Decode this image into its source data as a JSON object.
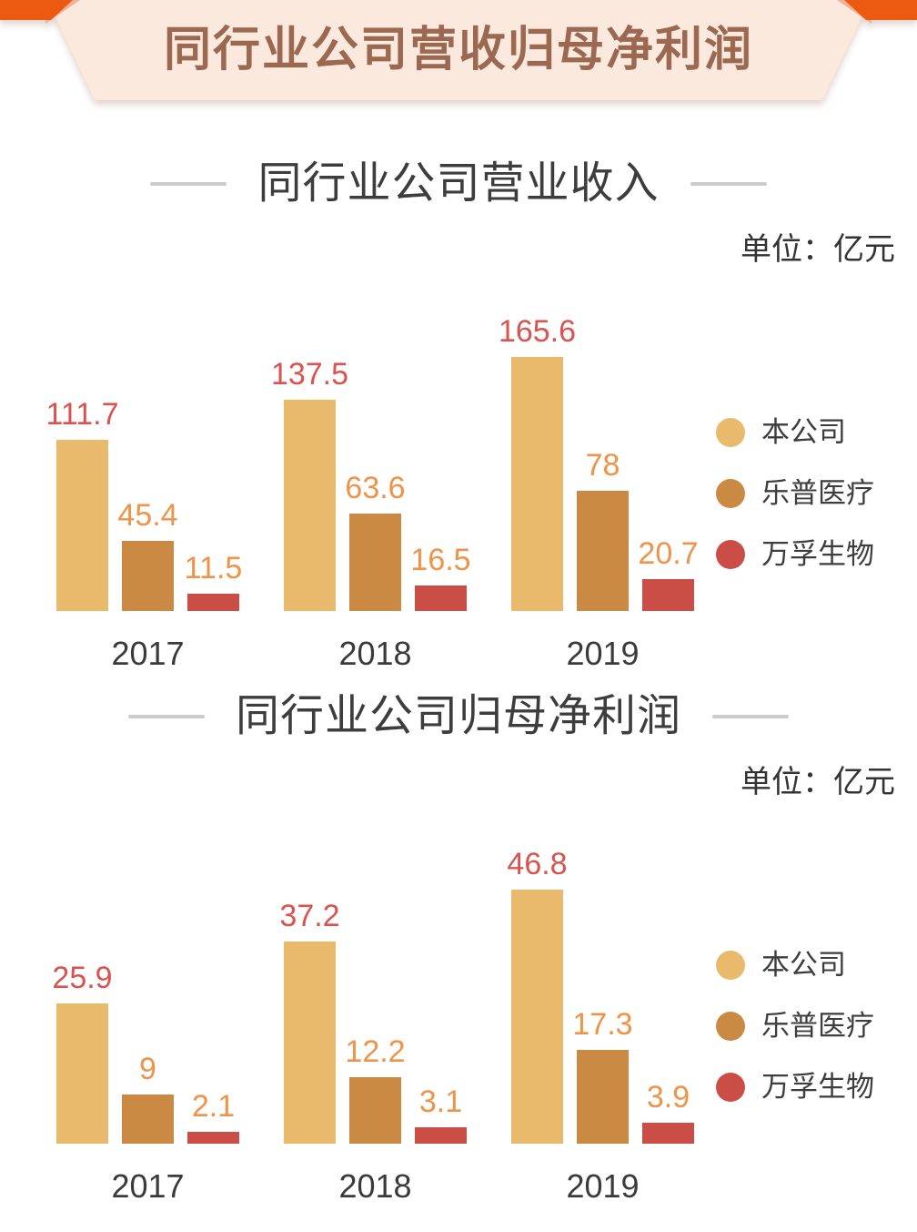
{
  "banner": {
    "title": "同行业公司营收归母净利润",
    "colors": {
      "background": "#fce9de",
      "text": "#9b6852",
      "ribbon": "#eb5a10",
      "fold": "#e9b29a"
    }
  },
  "chart_data": [
    {
      "type": "bar",
      "title": "同行业公司营业收入",
      "unit_label": "单位：亿元",
      "categories": [
        "2017",
        "2018",
        "2019"
      ],
      "series": [
        {
          "name": "本公司",
          "color": "#e9ba6c",
          "label_color": "#d9534f",
          "values": [
            111.7,
            137.5,
            165.6
          ]
        },
        {
          "name": "乐普医疗",
          "color": "#cb8a44",
          "label_color": "#ee9348",
          "values": [
            45.4,
            63.6,
            78
          ]
        },
        {
          "name": "万孚生物",
          "color": "#cb4e46",
          "label_color": "#ee9348",
          "values": [
            11.5,
            16.5,
            20.7
          ]
        }
      ],
      "xlabel": "",
      "ylabel": "亿元",
      "ylim": [
        0,
        166
      ],
      "grid": false,
      "legend_position": "right"
    },
    {
      "type": "bar",
      "title": "同行业公司归母净利润",
      "unit_label": "单位：亿元",
      "categories": [
        "2017",
        "2018",
        "2019"
      ],
      "series": [
        {
          "name": "本公司",
          "color": "#e9ba6c",
          "label_color": "#d9534f",
          "values": [
            25.9,
            37.2,
            46.8
          ]
        },
        {
          "name": "乐普医疗",
          "color": "#cb8a44",
          "label_color": "#ee9348",
          "values": [
            9,
            12.2,
            17.3
          ]
        },
        {
          "name": "万孚生物",
          "color": "#cb4e46",
          "label_color": "#ee9348",
          "values": [
            2.1,
            3.1,
            3.9
          ]
        }
      ],
      "xlabel": "",
      "ylabel": "亿元",
      "ylim": [
        0,
        47
      ],
      "grid": false,
      "legend_position": "right"
    }
  ]
}
